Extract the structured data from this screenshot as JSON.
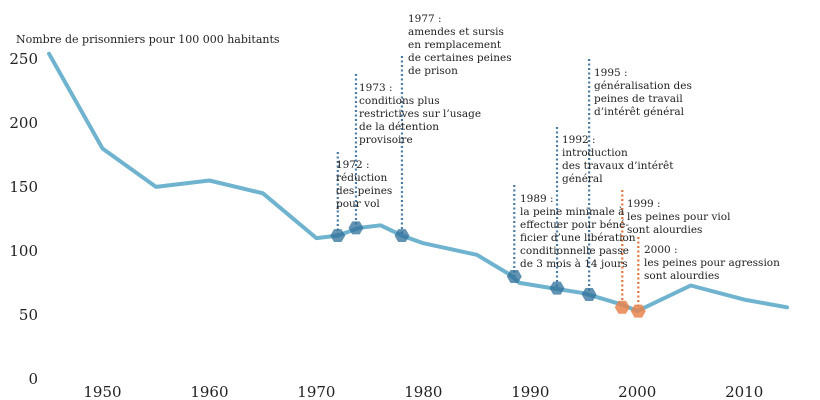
{
  "chart_data": {
    "type": "line",
    "ylabel": "Nombre de prisonniers pour 100 000 habitants",
    "xlim": [
      1945,
      2014
    ],
    "ylim": [
      0,
      260
    ],
    "x_ticks": [
      1950,
      1960,
      1970,
      1980,
      1990,
      2000,
      2010
    ],
    "y_ticks": [
      0,
      50,
      100,
      150,
      200,
      250
    ],
    "grid": false,
    "colors": {
      "line": "#6fb3cf",
      "marker_blue": "#2f6f9a",
      "marker_orange": "#e8844e",
      "leader_blue": "#4a7ba6",
      "leader_orange": "#e0753e"
    },
    "series": [
      {
        "x": [
          1945,
          1950,
          1955,
          1960,
          1965,
          1970,
          1972,
          1974,
          1976,
          1978,
          1980,
          1985,
          1988,
          1989,
          1992,
          1995,
          1998.6,
          2000,
          2005,
          2010,
          2014
        ],
        "y": [
          254,
          180,
          150,
          155,
          145,
          110,
          112,
          118,
          120,
          112,
          106,
          97,
          82,
          75,
          71,
          67,
          58,
          53,
          73,
          62,
          56
        ]
      }
    ],
    "annotations": [
      {
        "x": 1972,
        "y": 112,
        "color": "blue",
        "lines": [
          "1972 :",
          "réduction",
          "des peines",
          "pour vol"
        ]
      },
      {
        "x": 1973.7,
        "y": 118,
        "color": "blue",
        "lines": [
          "1973 :",
          "conditions plus",
          "restrictives sur l’usage",
          "de la détention",
          "provisoire"
        ]
      },
      {
        "x": 1978,
        "y": 112,
        "color": "blue",
        "lines": [
          "1977 :",
          "amendes et sursis",
          "en remplacement",
          "de certaines peines",
          "de prison"
        ]
      },
      {
        "x": 1988.5,
        "y": 80,
        "color": "blue",
        "lines": [
          "1989 :",
          "la peine minimale à",
          "effectuer pour béné-",
          "ficier d’une libération",
          "conditionnelle passe",
          "de 3 mois à 14 jours"
        ]
      },
      {
        "x": 1992.5,
        "y": 71,
        "color": "blue",
        "lines": [
          "1992 :",
          "introduction",
          "des travaux d’intérêt",
          "général"
        ]
      },
      {
        "x": 1995.5,
        "y": 66,
        "color": "blue",
        "lines": [
          "1995 :",
          "généralisation des",
          "peines de travail",
          "d’intérêt général"
        ]
      },
      {
        "x": 1998.6,
        "y": 56,
        "color": "orange",
        "lines": [
          "1999 :",
          "les peines pour viol",
          "sont alourdies"
        ]
      },
      {
        "x": 2000.1,
        "y": 53,
        "color": "orange",
        "lines": [
          "2000 :",
          "les peines pour agression",
          "sont alourdies"
        ]
      }
    ]
  }
}
